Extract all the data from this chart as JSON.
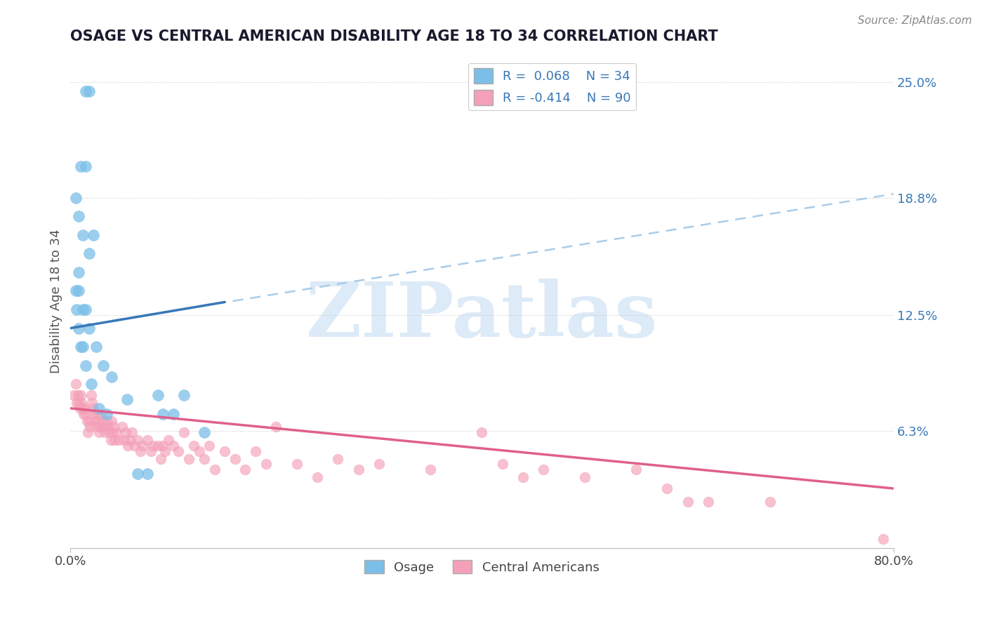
{
  "title": "OSAGE VS CENTRAL AMERICAN DISABILITY AGE 18 TO 34 CORRELATION CHART",
  "source": "Source: ZipAtlas.com",
  "ylabel": "Disability Age 18 to 34",
  "xlim": [
    0.0,
    0.8
  ],
  "ylim": [
    0.0,
    0.265
  ],
  "ytick_vals": [
    0.063,
    0.125,
    0.188,
    0.25
  ],
  "ytick_labels": [
    "6.3%",
    "12.5%",
    "18.8%",
    "25.0%"
  ],
  "blue_R": 0.068,
  "blue_N": 34,
  "pink_R": -0.414,
  "pink_N": 90,
  "blue_color": "#7bbfe8",
  "pink_color": "#f4a0b8",
  "blue_line_color": "#3878b8",
  "pink_line_color": "#e0608a",
  "dashed_line_color": "#aacce8",
  "watermark_text": "ZIPatlas",
  "legend_blue_label": "Osage",
  "legend_pink_label": "Central Americans",
  "blue_line_x0": 0.0,
  "blue_line_y0": 0.118,
  "blue_line_x1": 0.15,
  "blue_line_y1": 0.132,
  "dashed_line_x0": 0.04,
  "dashed_line_y0": 0.122,
  "dashed_line_x1": 0.8,
  "dashed_line_y1": 0.19,
  "pink_line_x0": 0.0,
  "pink_line_y0": 0.075,
  "pink_line_x1": 0.8,
  "pink_line_y1": 0.032,
  "osage_x": [
    0.015,
    0.018,
    0.015,
    0.01,
    0.005,
    0.008,
    0.012,
    0.018,
    0.022,
    0.008,
    0.012,
    0.015,
    0.005,
    0.008,
    0.012,
    0.018,
    0.025,
    0.032,
    0.008,
    0.006,
    0.01,
    0.015,
    0.02,
    0.028,
    0.035,
    0.04,
    0.055,
    0.065,
    0.075,
    0.085,
    0.09,
    0.1,
    0.11,
    0.13
  ],
  "osage_y": [
    0.245,
    0.245,
    0.205,
    0.205,
    0.188,
    0.178,
    0.168,
    0.158,
    0.168,
    0.148,
    0.128,
    0.128,
    0.138,
    0.118,
    0.108,
    0.118,
    0.108,
    0.098,
    0.138,
    0.128,
    0.108,
    0.098,
    0.088,
    0.075,
    0.072,
    0.092,
    0.08,
    0.04,
    0.04,
    0.082,
    0.072,
    0.072,
    0.082,
    0.062
  ],
  "ca_x": [
    0.003,
    0.005,
    0.006,
    0.007,
    0.008,
    0.009,
    0.01,
    0.011,
    0.012,
    0.013,
    0.014,
    0.015,
    0.016,
    0.017,
    0.018,
    0.019,
    0.02,
    0.021,
    0.022,
    0.023,
    0.024,
    0.025,
    0.026,
    0.027,
    0.028,
    0.029,
    0.03,
    0.031,
    0.032,
    0.033,
    0.035,
    0.036,
    0.038,
    0.039,
    0.04,
    0.041,
    0.042,
    0.043,
    0.045,
    0.047,
    0.05,
    0.052,
    0.054,
    0.056,
    0.058,
    0.06,
    0.062,
    0.065,
    0.068,
    0.07,
    0.075,
    0.078,
    0.08,
    0.085,
    0.088,
    0.09,
    0.092,
    0.095,
    0.1,
    0.105,
    0.11,
    0.115,
    0.12,
    0.125,
    0.13,
    0.135,
    0.14,
    0.15,
    0.16,
    0.17,
    0.18,
    0.19,
    0.2,
    0.22,
    0.24,
    0.26,
    0.28,
    0.3,
    0.35,
    0.4,
    0.42,
    0.44,
    0.46,
    0.5,
    0.55,
    0.58,
    0.6,
    0.62,
    0.68,
    0.79
  ],
  "ca_y": [
    0.082,
    0.088,
    0.078,
    0.082,
    0.078,
    0.075,
    0.082,
    0.078,
    0.075,
    0.072,
    0.075,
    0.072,
    0.068,
    0.062,
    0.068,
    0.065,
    0.082,
    0.078,
    0.075,
    0.072,
    0.068,
    0.065,
    0.072,
    0.068,
    0.062,
    0.065,
    0.072,
    0.068,
    0.065,
    0.062,
    0.068,
    0.065,
    0.062,
    0.058,
    0.068,
    0.062,
    0.065,
    0.058,
    0.062,
    0.058,
    0.065,
    0.058,
    0.062,
    0.055,
    0.058,
    0.062,
    0.055,
    0.058,
    0.052,
    0.055,
    0.058,
    0.052,
    0.055,
    0.055,
    0.048,
    0.055,
    0.052,
    0.058,
    0.055,
    0.052,
    0.062,
    0.048,
    0.055,
    0.052,
    0.048,
    0.055,
    0.042,
    0.052,
    0.048,
    0.042,
    0.052,
    0.045,
    0.065,
    0.045,
    0.038,
    0.048,
    0.042,
    0.045,
    0.042,
    0.062,
    0.045,
    0.038,
    0.042,
    0.038,
    0.042,
    0.032,
    0.025,
    0.025,
    0.025,
    0.005
  ]
}
